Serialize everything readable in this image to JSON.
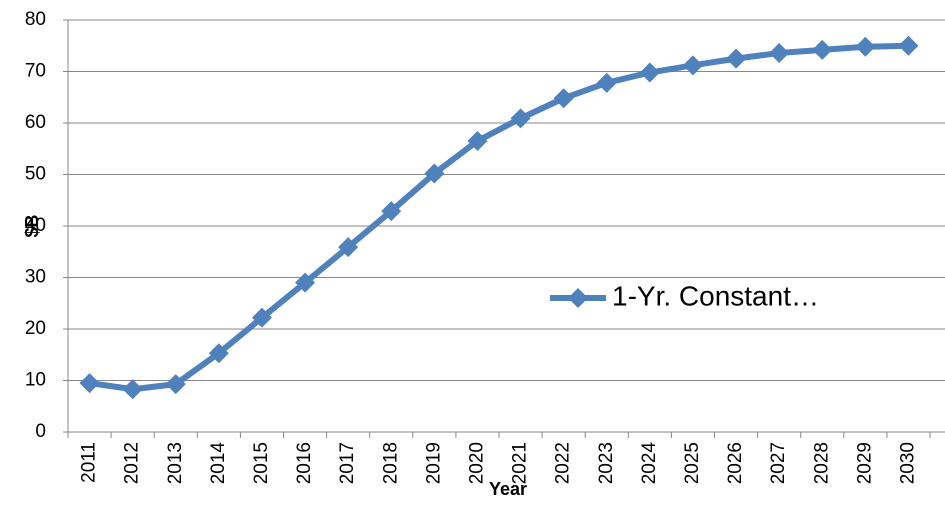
{
  "chart_data": {
    "type": "line",
    "y_label": "$B",
    "x_label": "Year",
    "categories": [
      "2011",
      "2012",
      "2013",
      "2014",
      "2015",
      "2016",
      "2017",
      "2018",
      "2019",
      "2020",
      "2021",
      "2022",
      "2023",
      "2024",
      "2025",
      "2026",
      "2027",
      "2028",
      "2029",
      "2030"
    ],
    "series": [
      {
        "name": "1-Yr. Constant…",
        "color": "#4f81bd",
        "values": [
          9.5,
          8.3,
          9.3,
          15.3,
          22.2,
          29,
          35.9,
          42.9,
          50.2,
          56.5,
          60.9,
          64.8,
          67.8,
          69.8,
          71.2,
          72.5,
          73.6,
          74.2,
          74.8,
          75.0
        ]
      }
    ],
    "ylim": [
      0,
      80
    ],
    "yticks": [
      0,
      10,
      20,
      30,
      40,
      50,
      60,
      70,
      80
    ],
    "grid": true,
    "legend": "right"
  }
}
